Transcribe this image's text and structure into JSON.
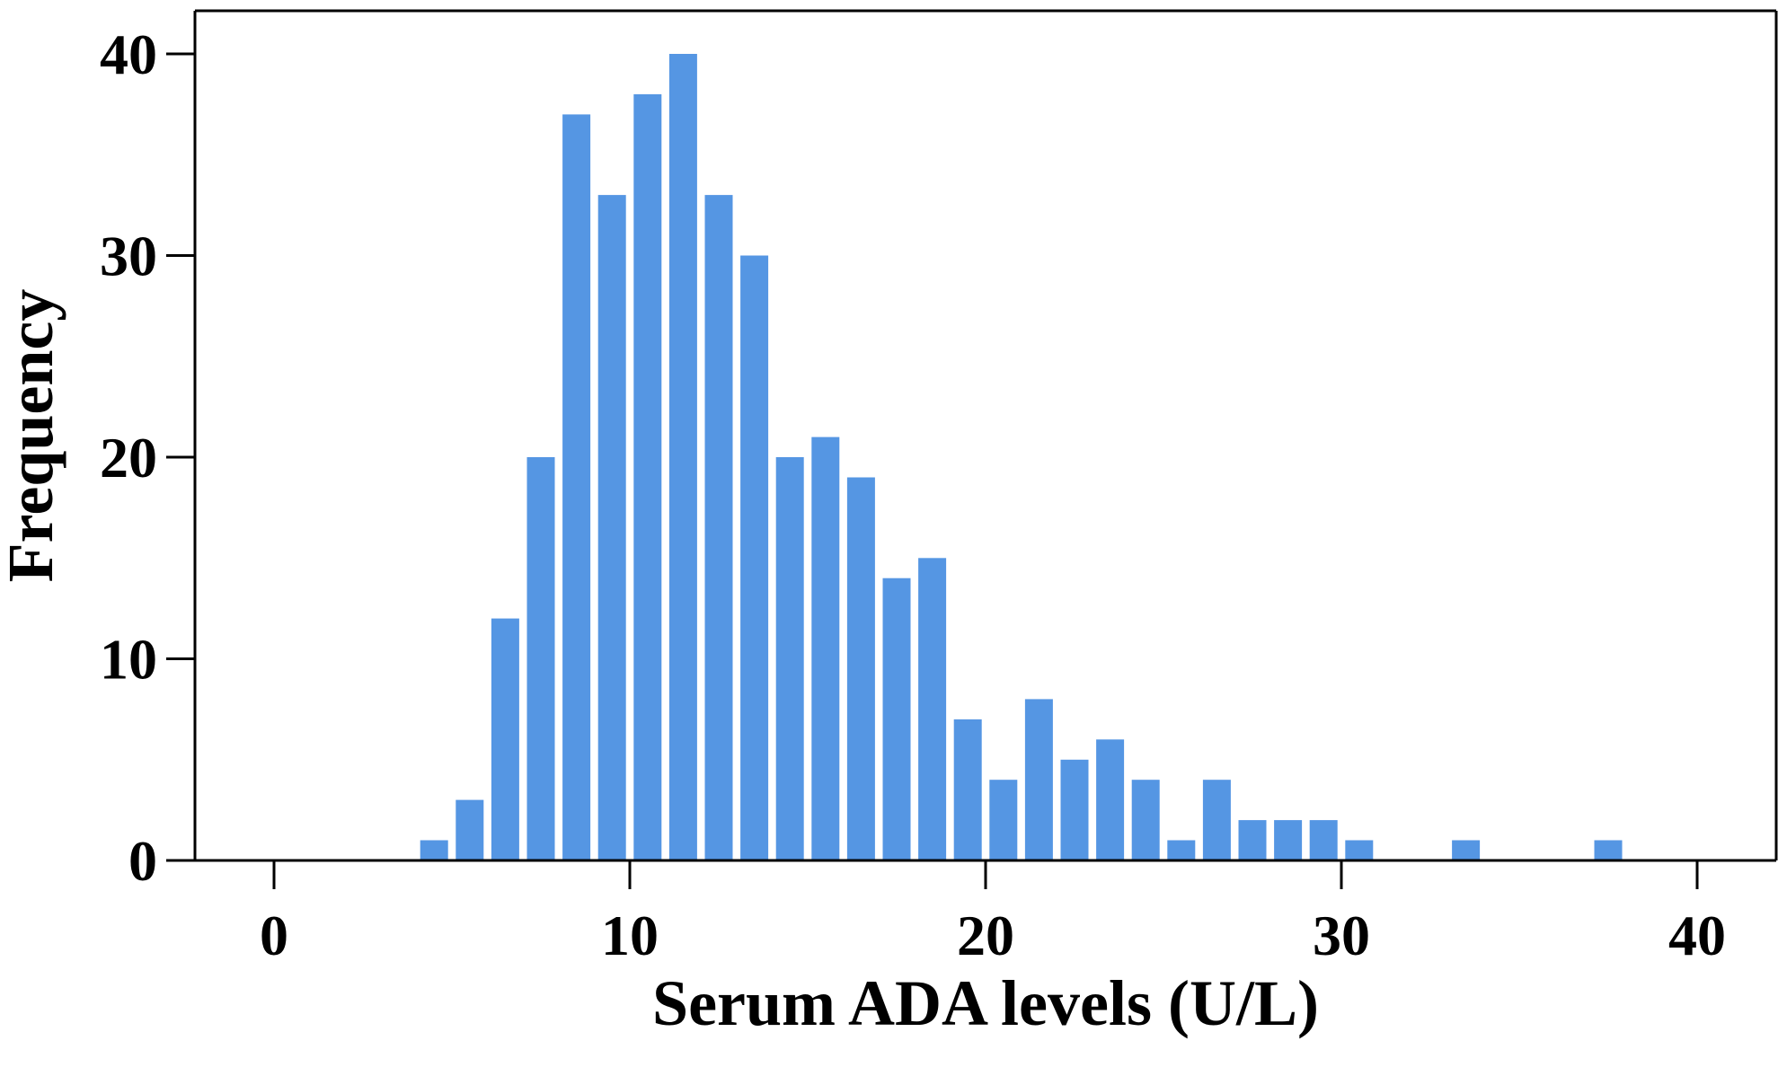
{
  "chart_data": {
    "type": "bar",
    "title": "",
    "xlabel": "Serum ADA levels (U/L)",
    "ylabel": "Frequency",
    "xlim": [
      -2.2,
      41.8
    ],
    "ylim": [
      0,
      40.5
    ],
    "xticks": [
      0,
      10,
      20,
      30,
      40
    ],
    "yticks": [
      0,
      10,
      20,
      30,
      40
    ],
    "bin_width": 1,
    "grid": false,
    "legend": "none",
    "bar_color": "#5596E3",
    "bins": [
      {
        "x": 4.5,
        "value": 1
      },
      {
        "x": 5.5,
        "value": 3
      },
      {
        "x": 6.5,
        "value": 12
      },
      {
        "x": 7.5,
        "value": 20
      },
      {
        "x": 8.5,
        "value": 37
      },
      {
        "x": 9.5,
        "value": 33
      },
      {
        "x": 10.5,
        "value": 38
      },
      {
        "x": 11.5,
        "value": 40
      },
      {
        "x": 12.5,
        "value": 33
      },
      {
        "x": 13.5,
        "value": 30
      },
      {
        "x": 14.5,
        "value": 20
      },
      {
        "x": 15.5,
        "value": 21
      },
      {
        "x": 16.5,
        "value": 19
      },
      {
        "x": 17.5,
        "value": 14
      },
      {
        "x": 18.5,
        "value": 15
      },
      {
        "x": 19.5,
        "value": 7
      },
      {
        "x": 20.5,
        "value": 4
      },
      {
        "x": 21.5,
        "value": 8
      },
      {
        "x": 22.5,
        "value": 5
      },
      {
        "x": 23.5,
        "value": 6
      },
      {
        "x": 24.5,
        "value": 4
      },
      {
        "x": 25.5,
        "value": 1
      },
      {
        "x": 26.5,
        "value": 4
      },
      {
        "x": 27.5,
        "value": 2
      },
      {
        "x": 28.5,
        "value": 2
      },
      {
        "x": 29.5,
        "value": 2
      },
      {
        "x": 30.5,
        "value": 1
      },
      {
        "x": 33.5,
        "value": 1
      },
      {
        "x": 37.5,
        "value": 1
      }
    ]
  }
}
